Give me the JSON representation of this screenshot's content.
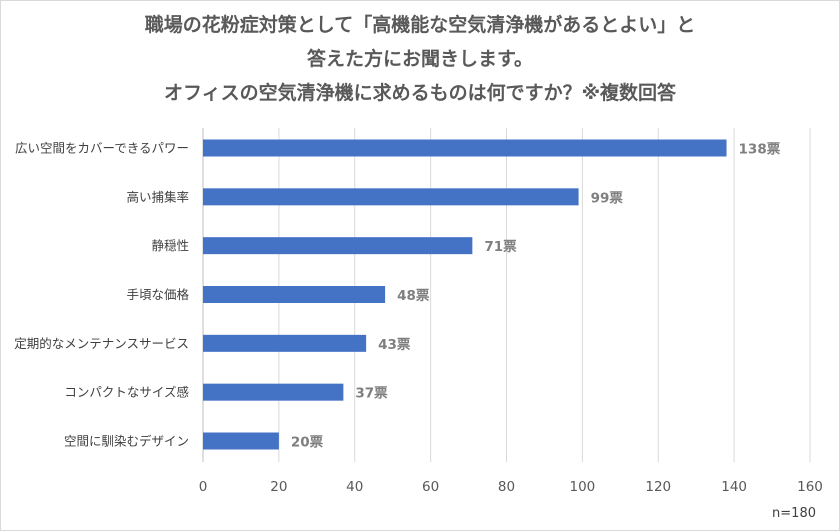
{
  "chart_data": {
    "type": "bar",
    "orientation": "horizontal",
    "title_lines": [
      "職場の花粉症対策として「高機能な空気清浄機があるとよい」と",
      "答えた方にお聞きします。",
      "オフィスの空気清浄機に求めるものは何ですか？※複数回答"
    ],
    "categories": [
      "広い空間をカバーできるパワー",
      "高い捕集率",
      "静穏性",
      "手頃な価格",
      "定期的なメンテナンスサービス",
      "コンパクトなサイズ感",
      "空間に馴染むデザイン"
    ],
    "values": [
      138,
      99,
      71,
      48,
      43,
      37,
      20
    ],
    "value_suffix": "票",
    "xlim": [
      0,
      160
    ],
    "xticks": [
      0,
      20,
      40,
      60,
      80,
      100,
      120,
      140,
      160
    ],
    "grid": "vertical",
    "legend": "none",
    "bar_color": "#4472c4",
    "note": "n=180"
  }
}
